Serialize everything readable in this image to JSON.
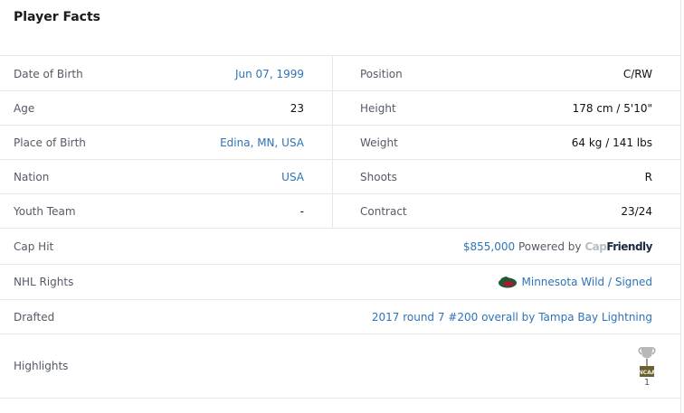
{
  "title": "Player Facts",
  "rows": [
    {
      "left": {
        "label": "Date of Birth",
        "value": "Jun 07, 1999"
      },
      "right": {
        "label": "Position",
        "value": "C/RW"
      }
    },
    {
      "left": {
        "label": "Age",
        "value": "23"
      },
      "right": {
        "label": "Height",
        "value": "178 cm / 5'10\""
      }
    },
    {
      "left": {
        "label": "Place of Birth",
        "value": "Edina, MN, USA"
      },
      "right": {
        "label": "Weight",
        "value": "64 kg / 141 lbs"
      }
    },
    {
      "left": {
        "label": "Nation",
        "value": "USA"
      },
      "right": {
        "label": "Shoots",
        "value": "R"
      }
    },
    {
      "left": {
        "label": "Youth Team",
        "value": "-"
      },
      "right": {
        "label": "Contract",
        "value": "23/24"
      }
    }
  ],
  "cap_hit": {
    "label": "Cap Hit",
    "value": "$855,000",
    "powered": "Powered by",
    "logo_cap": "Cap",
    "logo_friendly": "Friendly"
  },
  "nhl_rights": {
    "label": "NHL Rights",
    "value": "Minnesota Wild / Signed"
  },
  "drafted": {
    "label": "Drafted",
    "value": "2017 round 7 #200 overall by Tampa Bay Lightning"
  },
  "highlights": {
    "label": "Highlights",
    "badge": "NCAA",
    "count": "1"
  }
}
